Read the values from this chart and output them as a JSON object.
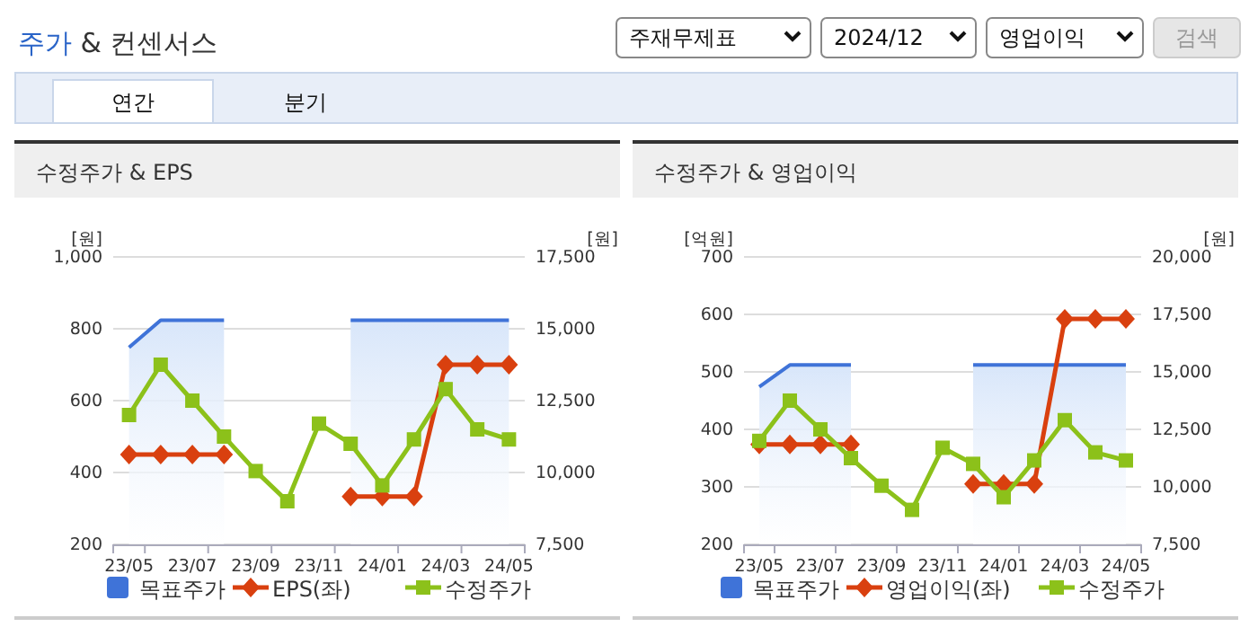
{
  "chart_data": [
    {
      "type": "other",
      "title": "주가 & 컨센서스",
      "annotations": [
        "주재무제표",
        "2024/12",
        "영업이익",
        "검색",
        "연간",
        "분기"
      ]
    },
    {
      "type": "line",
      "title": "수정주가 & EPS",
      "ylabel": "[원]",
      "y2label": "[원]",
      "categories": [
        "23/05",
        null,
        "23/07",
        null,
        "23/09",
        null,
        "23/11",
        null,
        "24/01",
        null,
        "24/03",
        null,
        "24/05"
      ],
      "ylim": [
        200,
        1000
      ],
      "yticks": [
        200,
        400,
        600,
        800,
        {
          "value": 1000,
          "label": "1,000"
        }
      ],
      "y2lim": [
        7500,
        17500
      ],
      "y2ticks": [
        {
          "value": 7500,
          "label": "7,500"
        },
        {
          "value": 10000,
          "label": "10,000"
        },
        {
          "value": 12500,
          "label": "12,500"
        },
        {
          "value": 15000,
          "label": "15,000"
        },
        {
          "value": 17500,
          "label": "17,500"
        }
      ],
      "grid": "y",
      "legend": "bottom",
      "series": [
        {
          "name": "목표주가",
          "type": "area",
          "axis": "y2",
          "color": "#3f73d8",
          "marker": "none",
          "values": [
            14350,
            15300,
            15300,
            15300,
            null,
            null,
            null,
            15300,
            15300,
            15300,
            15300,
            15300,
            15300
          ]
        },
        {
          "name": "EPS(좌)",
          "type": "line",
          "color": "#d9400f",
          "marker": "diamond",
          "values": [
            450,
            450,
            450,
            450,
            null,
            null,
            null,
            333,
            333,
            333,
            700,
            700,
            700
          ]
        },
        {
          "name": "수정주가",
          "type": "line",
          "axis": "y2",
          "color": "#8cc11a",
          "marker": "square",
          "values": [
            12000,
            13750,
            12500,
            11250,
            10050,
            9000,
            11700,
            11000,
            9550,
            11150,
            12900,
            11500,
            11150
          ]
        }
      ]
    },
    {
      "type": "line",
      "title": "수정주가 & 영업이익",
      "ylabel": "[억원]",
      "y2label": "[원]",
      "categories": [
        "23/05",
        null,
        "23/07",
        null,
        "23/09",
        null,
        "23/11",
        null,
        "24/01",
        null,
        "24/03",
        null,
        "24/05"
      ],
      "ylim": [
        200,
        700
      ],
      "yticks": [
        200,
        300,
        400,
        500,
        600,
        700
      ],
      "y2lim": [
        7500,
        20000
      ],
      "y2ticks": [
        {
          "value": 7500,
          "label": "7,500"
        },
        {
          "value": 10000,
          "label": "10,000"
        },
        {
          "value": 12500,
          "label": "12,500"
        },
        {
          "value": 15000,
          "label": "15,000"
        },
        {
          "value": 17500,
          "label": "17,500"
        },
        {
          "value": 20000,
          "label": "20,000"
        }
      ],
      "grid": "y",
      "legend": "bottom",
      "series": [
        {
          "name": "목표주가",
          "type": "area",
          "axis": "y2",
          "color": "#3f73d8",
          "marker": "none",
          "values": [
            14350,
            15300,
            15300,
            15300,
            null,
            null,
            null,
            15300,
            15300,
            15300,
            15300,
            15300,
            15300
          ]
        },
        {
          "name": "영업이익(좌)",
          "type": "line",
          "color": "#d9400f",
          "marker": "diamond",
          "values": [
            374,
            374,
            374,
            374,
            null,
            null,
            null,
            305,
            305,
            305,
            592,
            592,
            592
          ]
        },
        {
          "name": "수정주가",
          "type": "line",
          "axis": "y2",
          "color": "#8cc11a",
          "marker": "square",
          "values": [
            12000,
            13750,
            12500,
            11250,
            10050,
            9000,
            11700,
            11000,
            9550,
            11150,
            12900,
            11500,
            11150
          ]
        }
      ]
    }
  ]
}
